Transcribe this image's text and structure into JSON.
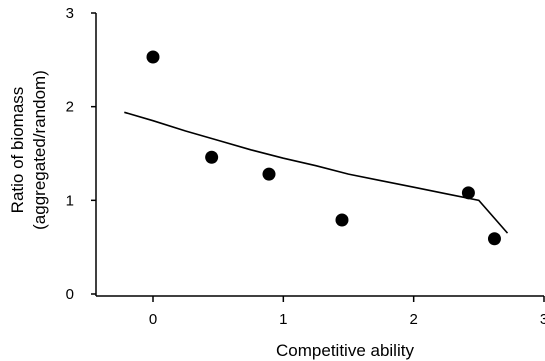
{
  "chart_data": {
    "type": "scatter",
    "title": "",
    "xlabel": "Competitive ability",
    "ylabel_lines": [
      "Ratio of biomass",
      "(aggregated/random)"
    ],
    "xlim": [
      0,
      3
    ],
    "ylim": [
      0,
      3
    ],
    "x_ticks": [
      0,
      1,
      2,
      3
    ],
    "y_ticks": [
      0,
      1,
      2,
      3
    ],
    "x_tick_labels": [
      "0",
      "1",
      "2",
      "3"
    ],
    "y_tick_labels": [
      "0",
      "1",
      "2",
      "3"
    ],
    "grid": false,
    "legend": "none",
    "series": [
      {
        "kind": "points",
        "x": [
          0.0,
          0.45,
          0.89,
          1.45,
          2.42,
          2.62
        ],
        "y": [
          2.53,
          1.46,
          1.28,
          0.79,
          1.08,
          0.59
        ]
      },
      {
        "kind": "fit-curve",
        "x": [
          -0.22,
          0.0,
          0.25,
          0.5,
          0.75,
          1.0,
          1.25,
          1.5,
          1.75,
          2.0,
          2.25,
          2.5,
          2.72
        ],
        "y": [
          1.94,
          1.85,
          1.74,
          1.64,
          1.54,
          1.45,
          1.37,
          1.28,
          1.21,
          1.14,
          1.07,
          1.0,
          0.65
        ]
      }
    ],
    "colors": {
      "points": "#000000",
      "curve": "#000000",
      "axes": "#000000"
    }
  }
}
